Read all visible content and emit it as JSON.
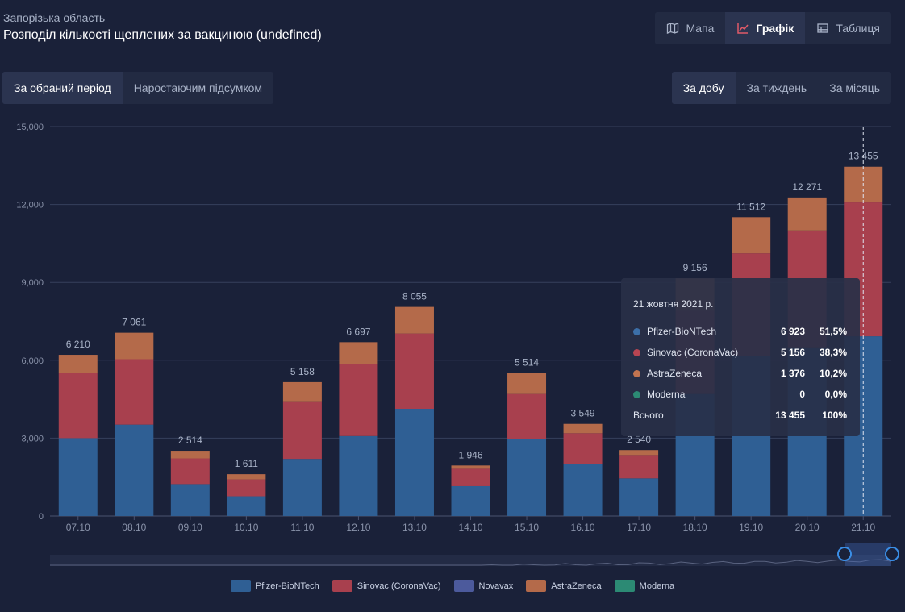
{
  "header": {
    "region": "Запорізька область",
    "title": "Розподіл кількості щеплених за вакциною (undefined)"
  },
  "view_toggle": [
    {
      "label": "Мапа",
      "icon": "map-icon",
      "active": false
    },
    {
      "label": "Графік",
      "icon": "chart-icon",
      "active": true
    },
    {
      "label": "Таблиця",
      "icon": "table-icon",
      "active": false
    }
  ],
  "period_toggle": [
    {
      "label": "За обраний період",
      "active": true
    },
    {
      "label": "Наростаючим підсумком",
      "active": false
    }
  ],
  "step_toggle": [
    {
      "label": "За добу",
      "active": true
    },
    {
      "label": "За тиждень",
      "active": false
    },
    {
      "label": "За місяць",
      "active": false
    }
  ],
  "chart_data": {
    "type": "bar",
    "stacked": true,
    "categories": [
      "07.10",
      "08.10",
      "09.10",
      "10.10",
      "11.10",
      "12.10",
      "13.10",
      "14.10",
      "15.10",
      "16.10",
      "17.10",
      "18.10",
      "19.10",
      "20.10",
      "21.10"
    ],
    "totals": [
      "6 210",
      "7 061",
      "2 514",
      "1 611",
      "5 158",
      "6 697",
      "8 055",
      "1 946",
      "5 514",
      "3 549",
      "2 540",
      "9 156",
      "11 512",
      "12 271",
      "13 455"
    ],
    "yticks": [
      "0",
      "3,000",
      "6,000",
      "9,000",
      "12,000",
      "15,000"
    ],
    "ylim": [
      0,
      15000
    ],
    "grid": true,
    "legend_position": "bottom",
    "series": [
      {
        "name": "Pfizer-BioNTech",
        "color": "#2f5f94",
        "values": [
          3000,
          3520,
          1230,
          760,
          2200,
          3080,
          4130,
          1150,
          2970,
          1990,
          1450,
          4700,
          6150,
          6500,
          6923
        ]
      },
      {
        "name": "Sinovac (CoronaVac)",
        "color": "#a8404e",
        "values": [
          2500,
          2520,
          990,
          650,
          2220,
          2780,
          2900,
          670,
          1730,
          1200,
          900,
          3200,
          3970,
          4500,
          5156
        ]
      },
      {
        "name": "Novavax",
        "color": "#4c5a9c",
        "values": [
          0,
          0,
          0,
          0,
          0,
          0,
          0,
          0,
          0,
          0,
          0,
          0,
          0,
          0,
          0
        ]
      },
      {
        "name": "AstraZeneca",
        "color": "#b46a4a",
        "values": [
          710,
          1021,
          294,
          201,
          738,
          837,
          1025,
          126,
          814,
          359,
          190,
          1256,
          1392,
          1271,
          1376
        ]
      },
      {
        "name": "Moderna",
        "color": "#2c8a74",
        "values": [
          0,
          0,
          0,
          0,
          0,
          0,
          0,
          0,
          0,
          0,
          0,
          0,
          0,
          0,
          0
        ]
      }
    ],
    "highlighted_index": 14
  },
  "tooltip": {
    "date": "21 жовтня 2021 р.",
    "rows": [
      {
        "name": "Pfizer-BioNTech",
        "value": "6 923",
        "pct": "51,5%",
        "color": "#3c6fa8"
      },
      {
        "name": "Sinovac (CoronaVac)",
        "value": "5 156",
        "pct": "38,3%",
        "color": "#b84552"
      },
      {
        "name": "AstraZeneca",
        "value": "1 376",
        "pct": "10,2%",
        "color": "#c27450"
      },
      {
        "name": "Moderna",
        "value": "0",
        "pct": "0,0%",
        "color": "#2c8a74"
      }
    ],
    "total": {
      "name": "Всього",
      "value": "13 455",
      "pct": "100%"
    }
  },
  "legend": [
    {
      "name": "Pfizer-BioNTech",
      "color": "#2f5f94"
    },
    {
      "name": "Sinovac (CoronaVac)",
      "color": "#a8404e"
    },
    {
      "name": "Novavax",
      "color": "#4c5a9c"
    },
    {
      "name": "AstraZeneca",
      "color": "#b46a4a"
    },
    {
      "name": "Moderna",
      "color": "#2c8a74"
    }
  ]
}
